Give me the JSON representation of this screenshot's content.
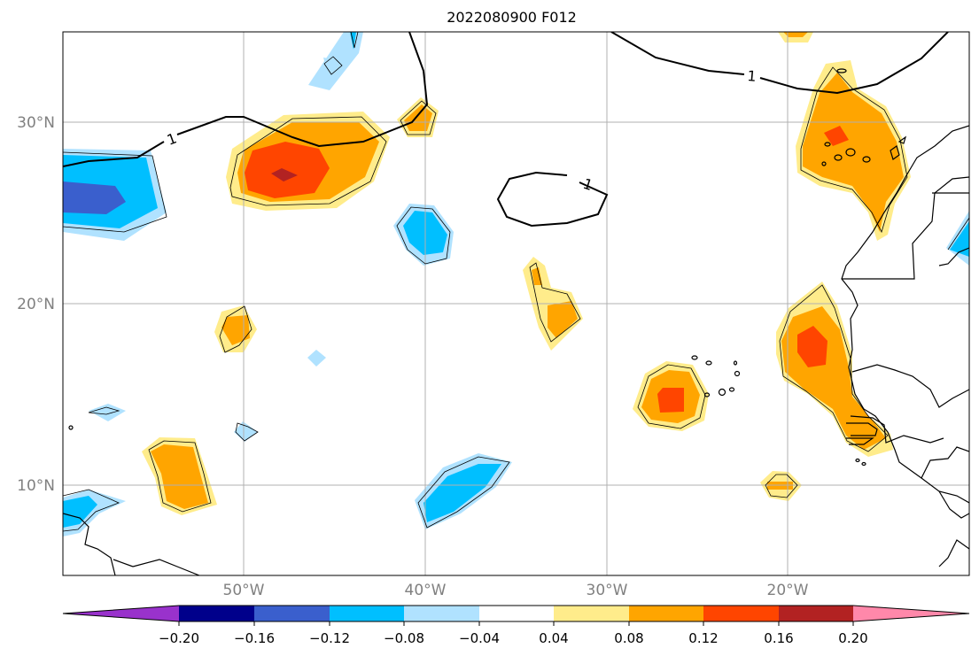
{
  "figure": {
    "title": "2022080900 F012"
  },
  "map": {
    "lat_labels": [
      "30°N",
      "20°N",
      "10°N"
    ],
    "lon_labels": [
      "50°W",
      "40°W",
      "30°W",
      "20°W"
    ],
    "contour_label": "1",
    "colors": {
      "land_border": "#000000",
      "grid": "#b0b0b0",
      "tick_label": "#808080"
    }
  },
  "colorbar": {
    "tick_labels": [
      "−0.20",
      "−0.16",
      "−0.12",
      "−0.08",
      "−0.04",
      "0.04",
      "0.08",
      "0.12",
      "0.16",
      "0.20"
    ],
    "colors": [
      "#9932cc",
      "#00008b",
      "#3a5fcd",
      "#00bfff",
      "#b0e2ff",
      "#ffffff",
      "#ffec8b",
      "#ffa500",
      "#ff4500",
      "#b22222",
      "#ff88aa"
    ]
  }
}
